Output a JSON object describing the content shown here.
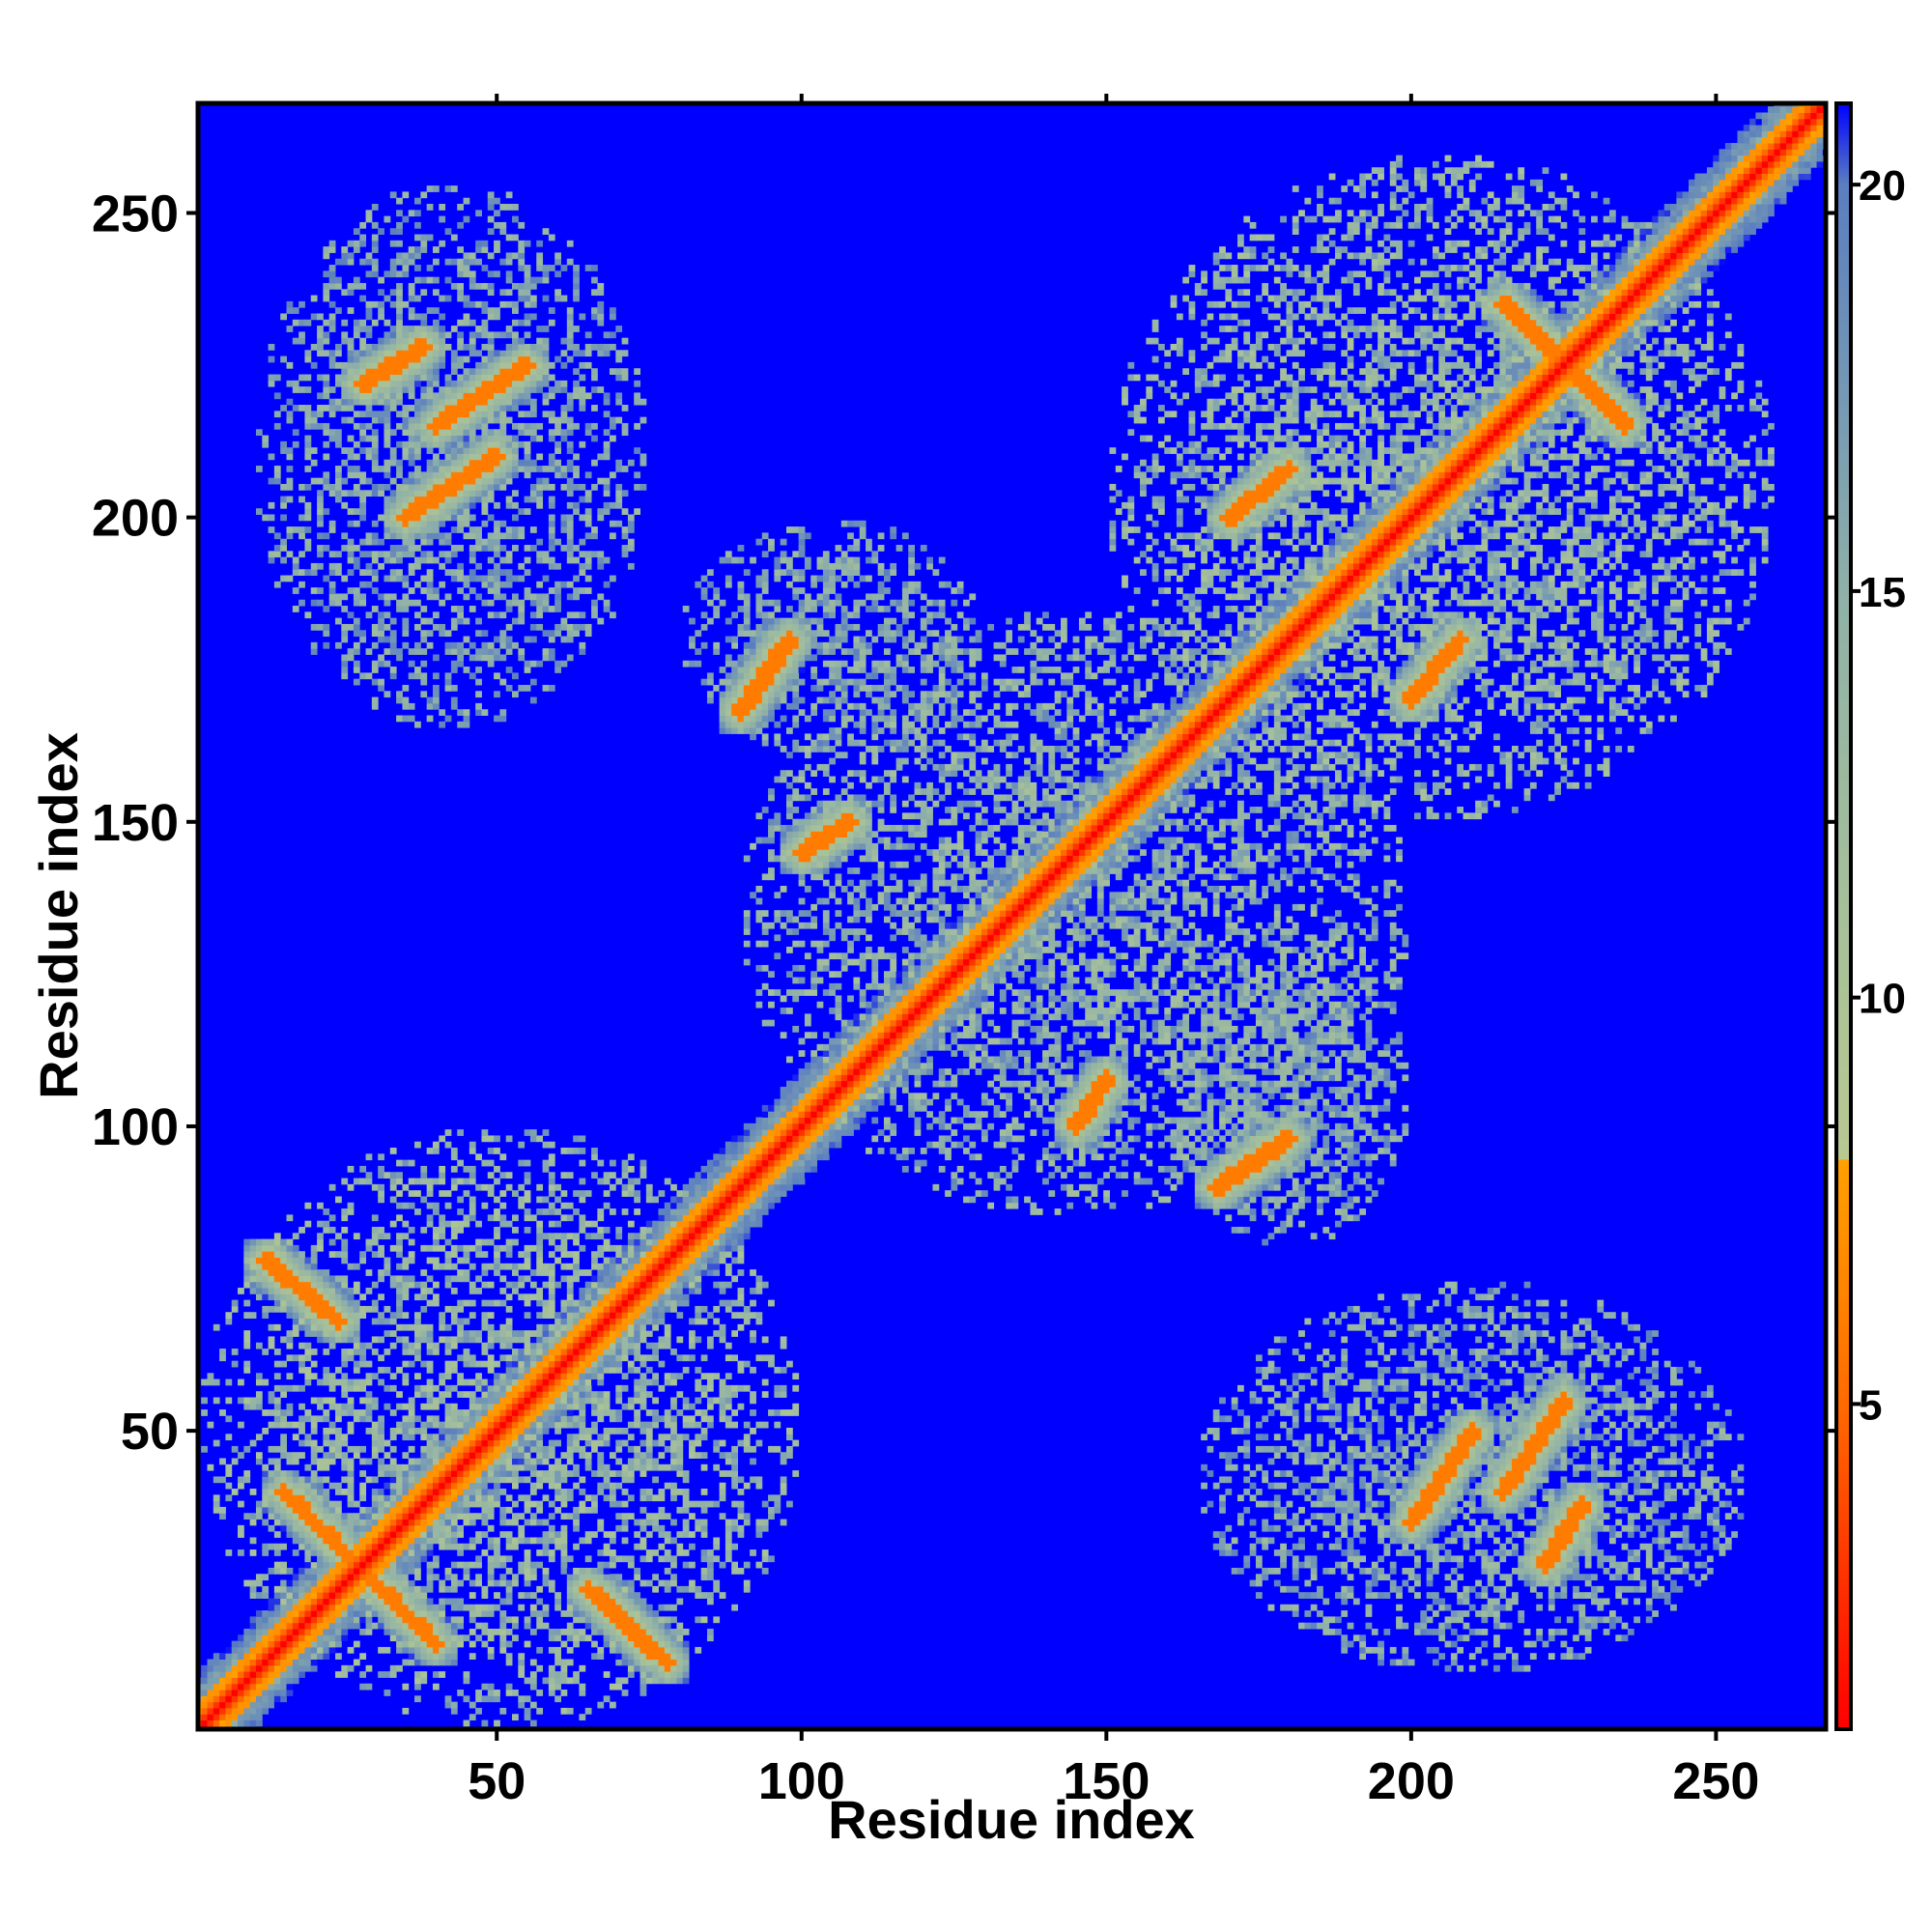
{
  "chart_data": {
    "type": "heatmap",
    "title": "",
    "xlabel": "Residue index",
    "ylabel": "Residue index",
    "xlim": [
      1,
      268
    ],
    "ylim": [
      1,
      268
    ],
    "x_ticks": [
      50,
      100,
      150,
      200,
      250
    ],
    "y_ticks": [
      50,
      100,
      150,
      200,
      250
    ],
    "colorbar": {
      "ticks": [
        5,
        10,
        15,
        20
      ],
      "range": [
        1,
        21
      ],
      "colors": [
        {
          "value": 1,
          "color": "#ff0000"
        },
        {
          "value": 5,
          "color": "#ff6a00"
        },
        {
          "value": 8,
          "color": "#ffa000"
        },
        {
          "value": 8.01,
          "color": "#b8c890"
        },
        {
          "value": 11,
          "color": "#a6c09a"
        },
        {
          "value": 15,
          "color": "#8fb0a8"
        },
        {
          "value": 20,
          "color": "#5a7ec0"
        },
        {
          "value": 21,
          "color": "#0000ff"
        }
      ]
    },
    "background_color": "#0000ff",
    "diagonal_band": {
      "from": 1,
      "to": 268,
      "value": 2
    },
    "contact_features": [
      {
        "type": "antiparallel",
        "x": [
          15,
          40
        ],
        "y": [
          40,
          15
        ],
        "value": 6
      },
      {
        "type": "antiparallel",
        "x": [
          65,
          78
        ],
        "y": [
          24,
          12
        ],
        "value": 6
      },
      {
        "type": "antiparallel",
        "x": [
          12,
          24
        ],
        "y": [
          78,
          68
        ],
        "value": 6
      },
      {
        "type": "parallel",
        "x": [
          35,
          50
        ],
        "y": [
          200,
          210
        ],
        "value": 6
      },
      {
        "type": "parallel",
        "x": [
          40,
          55
        ],
        "y": [
          215,
          225
        ],
        "value": 6
      },
      {
        "type": "parallel",
        "x": [
          28,
          38
        ],
        "y": [
          222,
          228
        ],
        "value": 6
      },
      {
        "type": "parallel",
        "x": [
          90,
          98
        ],
        "y": [
          168,
          180
        ],
        "value": 6
      },
      {
        "type": "parallel",
        "x": [
          100,
          108
        ],
        "y": [
          145,
          150
        ],
        "value": 6
      },
      {
        "type": "parallel",
        "x": [
          168,
          180
        ],
        "y": [
          90,
          98
        ],
        "value": 6
      },
      {
        "type": "parallel",
        "x": [
          145,
          150
        ],
        "y": [
          100,
          108
        ],
        "value": 6
      },
      {
        "type": "parallel",
        "x": [
          200,
          210
        ],
        "y": [
          35,
          50
        ],
        "value": 6
      },
      {
        "type": "parallel",
        "x": [
          215,
          225
        ],
        "y": [
          40,
          55
        ],
        "value": 6
      },
      {
        "type": "parallel",
        "x": [
          222,
          228
        ],
        "y": [
          28,
          38
        ],
        "value": 6
      },
      {
        "type": "parallel",
        "x": [
          170,
          180
        ],
        "y": [
          200,
          208
        ],
        "value": 6
      },
      {
        "type": "parallel",
        "x": [
          200,
          208
        ],
        "y": [
          170,
          180
        ],
        "value": 6
      },
      {
        "type": "antiparallel",
        "x": [
          215,
          235
        ],
        "y": [
          235,
          215
        ],
        "value": 6
      }
    ],
    "contact_regions": [
      {
        "x": [
          1,
          100
        ],
        "y": [
          1,
          100
        ],
        "value": 13
      },
      {
        "x": [
          90,
          200
        ],
        "y": [
          85,
          185
        ],
        "value": 14
      },
      {
        "x": [
          150,
          260
        ],
        "y": [
          150,
          260
        ],
        "value": 13
      },
      {
        "x": [
          10,
          75
        ],
        "y": [
          165,
          255
        ],
        "value": 15
      },
      {
        "x": [
          165,
          255
        ],
        "y": [
          10,
          75
        ],
        "value": 15
      },
      {
        "x": [
          160,
          200
        ],
        "y": [
          80,
          130
        ],
        "value": 15
      },
      {
        "x": [
          80,
          130
        ],
        "y": [
          160,
          200
        ],
        "value": 15
      }
    ]
  }
}
